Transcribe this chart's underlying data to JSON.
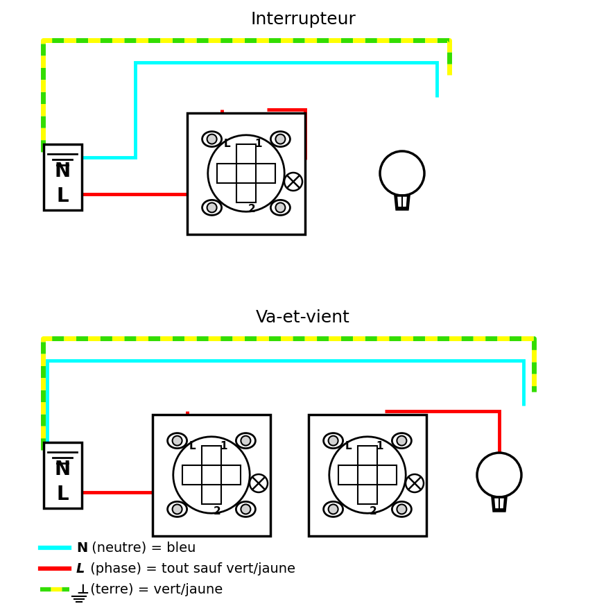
{
  "title_top": "Interrupteur",
  "title_bottom": "Va-et-vient",
  "wire_cyan": "#00FFFF",
  "wire_red": "#FF0000",
  "wire_green": "#33DD00",
  "wire_yellow": "#FFFF00",
  "wire_lw": 3.5,
  "terre_lw": 5.0,
  "bg_color": "#FFFFFF",
  "legend": [
    {
      "line_color": "#00FFFF",
      "bold": "N",
      "text": " (neutre) = bleu"
    },
    {
      "line_color": "#FF0000",
      "bold": "L",
      "text": " (phase) = tout sauf vert/jaune"
    },
    {
      "line_color": "terre",
      "bold": "⊥",
      "text": " (terre) = vert/jaune"
    }
  ]
}
